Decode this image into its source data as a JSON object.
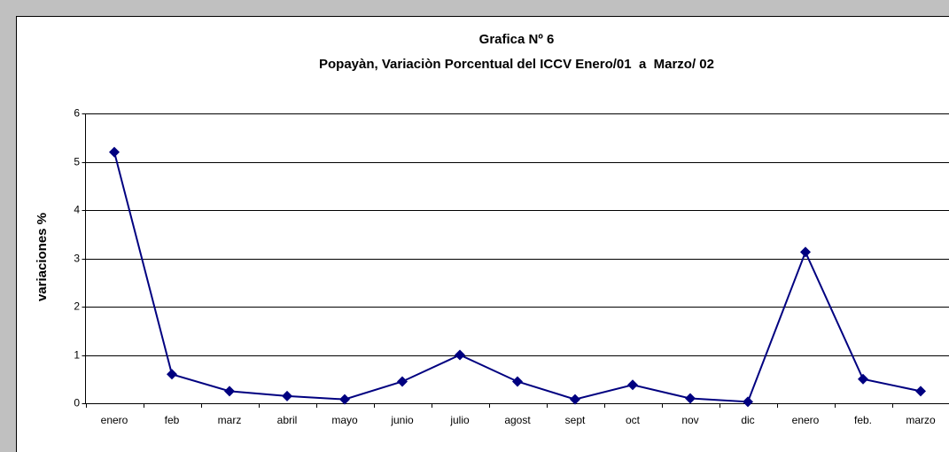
{
  "chart_data": {
    "type": "line",
    "title": "Grafica Nº 6",
    "subtitle": "Popayàn, Variaciòn Porcentual del ICCV Enero/01  a  Marzo/ 02",
    "y_label": "variaciones %",
    "categories": [
      "enero",
      "feb",
      "marz",
      "abril",
      "mayo",
      "junio",
      "julio",
      "agost",
      "sept",
      "oct",
      "nov",
      "dic",
      "enero",
      "feb.",
      "marzo"
    ],
    "values": [
      5.2,
      0.6,
      0.25,
      0.15,
      0.08,
      0.45,
      1.0,
      0.45,
      0.08,
      0.38,
      0.1,
      0.03,
      3.13,
      0.5,
      0.25
    ],
    "color": "#000080",
    "ylim": [
      0,
      6
    ],
    "yticks": [
      0,
      1,
      2,
      3,
      4,
      5,
      6
    ],
    "grid": true
  }
}
